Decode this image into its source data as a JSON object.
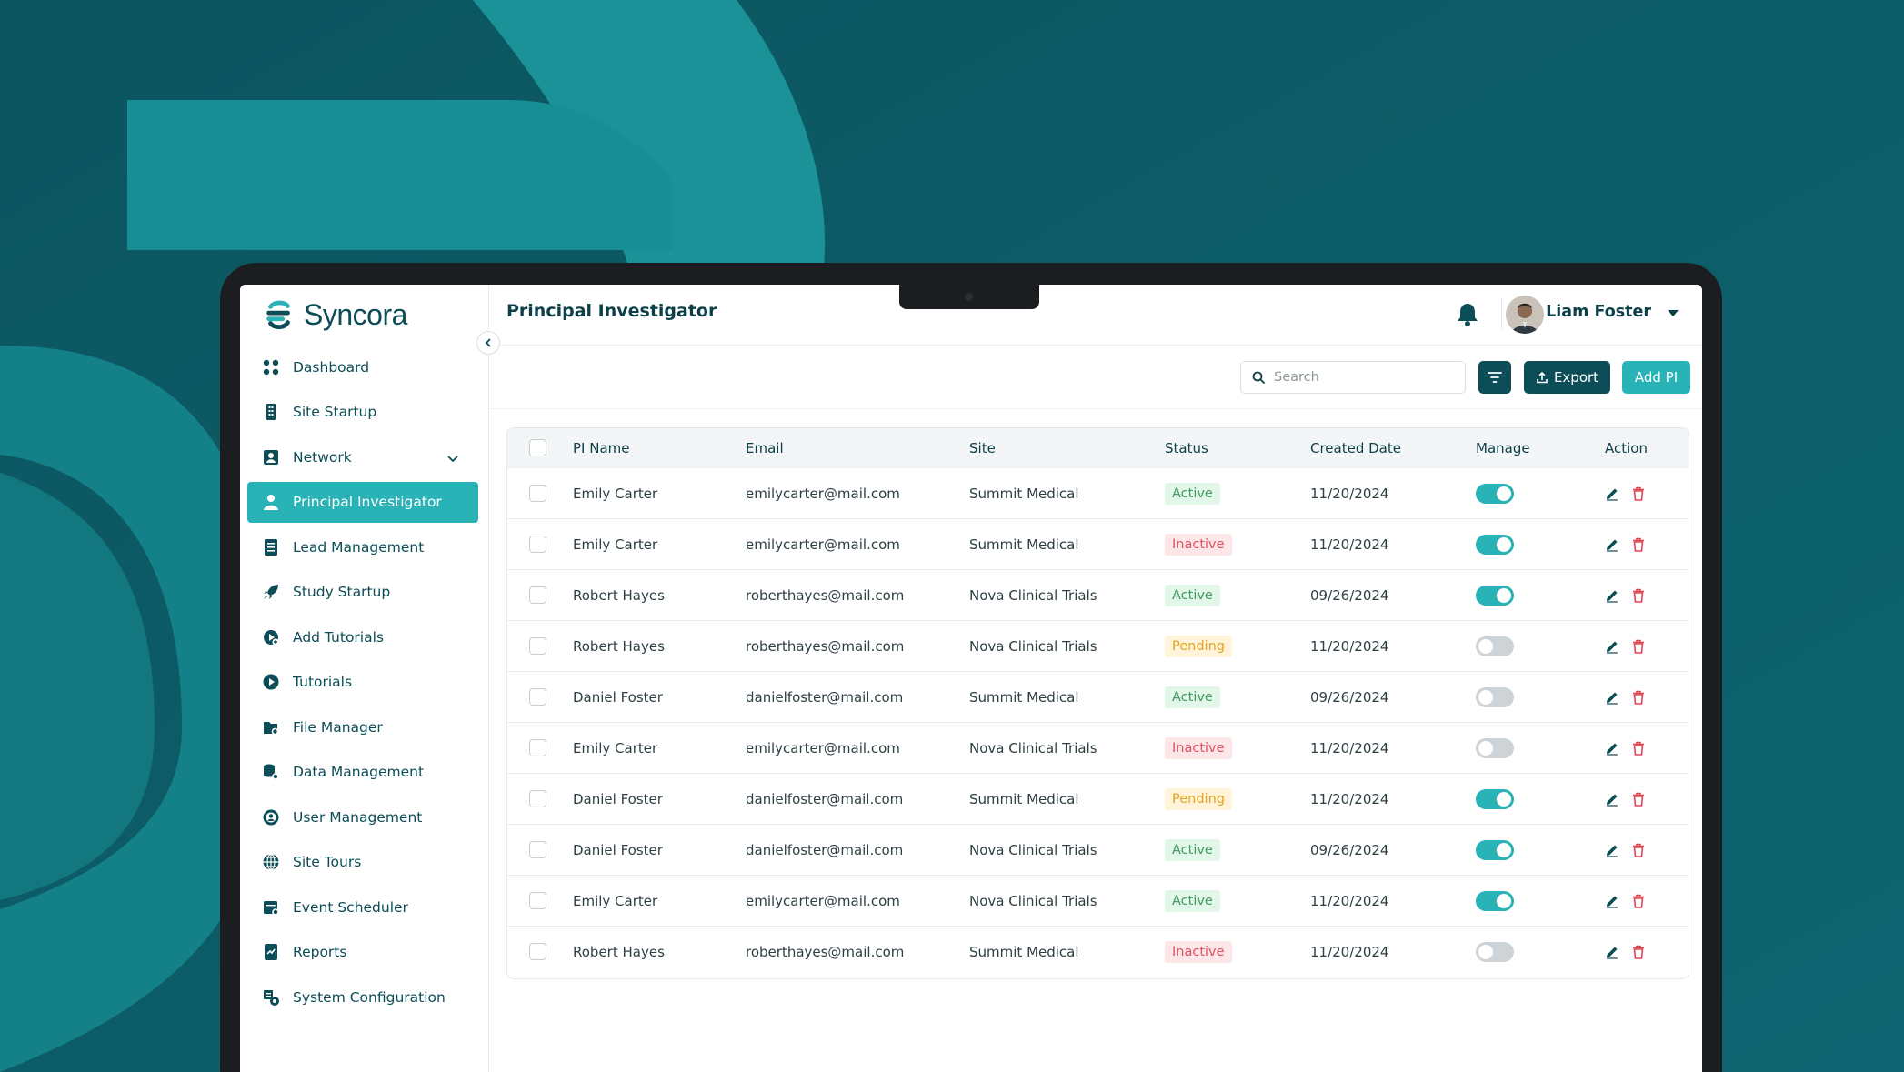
{
  "app": {
    "name": "Syncora"
  },
  "colors": {
    "brand_dark": "#0c4d58",
    "accent": "#29b3b7",
    "background": "#0d5f6a"
  },
  "sidebar": {
    "items": [
      {
        "label": "Dashboard",
        "icon": "grid-icon"
      },
      {
        "label": "Site Startup",
        "icon": "building-icon"
      },
      {
        "label": "Network",
        "icon": "contact-card-icon"
      },
      {
        "label": "Principal Investigator",
        "icon": "person-icon",
        "active": true
      },
      {
        "label": "Lead Management",
        "icon": "document-list-icon"
      },
      {
        "label": "Study Startup",
        "icon": "rocket-icon"
      },
      {
        "label": "Add Tutorials",
        "icon": "video-add-icon"
      },
      {
        "label": "Tutorials",
        "icon": "play-circle-icon"
      },
      {
        "label": "File Manager",
        "icon": "folder-settings-icon"
      },
      {
        "label": "Data Management",
        "icon": "database-settings-icon"
      },
      {
        "label": "User Management",
        "icon": "user-gear-icon"
      },
      {
        "label": "Site Tours",
        "icon": "globe-icon"
      },
      {
        "label": "Event Scheduler",
        "icon": "calendar-settings-icon"
      },
      {
        "label": "Reports",
        "icon": "report-icon"
      },
      {
        "label": "System Configuration",
        "icon": "config-icon"
      }
    ]
  },
  "header": {
    "title": "Principal Investigator",
    "user_name": "Liam Foster"
  },
  "toolbar": {
    "search_placeholder": "Search",
    "export_label": "Export",
    "add_label": "Add PI"
  },
  "table": {
    "columns": [
      "PI Name",
      "Email",
      "Site",
      "Status",
      "Created Date",
      "Manage",
      "Action"
    ],
    "rows": [
      {
        "name": "Emily Carter",
        "email": "emilycarter@mail.com",
        "site": "Summit Medical",
        "status": "Active",
        "date": "11/20/2024",
        "manage": true
      },
      {
        "name": "Emily Carter",
        "email": "emilycarter@mail.com",
        "site": "Summit Medical",
        "status": "Inactive",
        "date": "11/20/2024",
        "manage": true
      },
      {
        "name": "Robert Hayes",
        "email": "roberthayes@mail.com",
        "site": "Nova Clinical Trials",
        "status": "Active",
        "date": "09/26/2024",
        "manage": true
      },
      {
        "name": "Robert Hayes",
        "email": "roberthayes@mail.com",
        "site": "Nova Clinical Trials",
        "status": "Pending",
        "date": "11/20/2024",
        "manage": false
      },
      {
        "name": "Daniel Foster",
        "email": "danielfoster@mail.com",
        "site": "Summit Medical",
        "status": "Active",
        "date": "09/26/2024",
        "manage": false
      },
      {
        "name": "Emily Carter",
        "email": "emilycarter@mail.com",
        "site": "Nova Clinical Trials",
        "status": "Inactive",
        "date": "11/20/2024",
        "manage": false
      },
      {
        "name": "Daniel Foster",
        "email": "danielfoster@mail.com",
        "site": "Summit Medical",
        "status": "Pending",
        "date": "11/20/2024",
        "manage": true
      },
      {
        "name": "Daniel Foster",
        "email": "danielfoster@mail.com",
        "site": "Nova Clinical Trials",
        "status": "Active",
        "date": "09/26/2024",
        "manage": true
      },
      {
        "name": "Emily Carter",
        "email": "emilycarter@mail.com",
        "site": "Nova Clinical Trials",
        "status": "Active",
        "date": "11/20/2024",
        "manage": true
      },
      {
        "name": "Robert Hayes",
        "email": "roberthayes@mail.com",
        "site": "Summit Medical",
        "status": "Inactive",
        "date": "11/20/2024",
        "manage": false
      }
    ]
  }
}
